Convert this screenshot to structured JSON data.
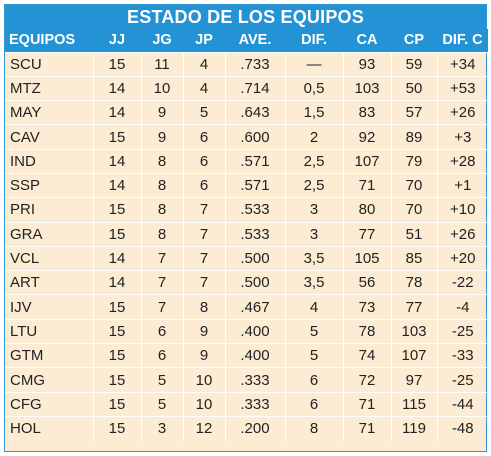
{
  "title": "ESTADO DE LOS EQUIPOS",
  "headers": [
    "EQUIPOS",
    "JJ",
    "JG",
    "JP",
    "AVE.",
    "DIF.",
    "CA",
    "CP",
    "DIF. C"
  ],
  "rows": [
    [
      "SCU",
      "15",
      "11",
      "4",
      ".733",
      "—",
      "93",
      "59",
      "+34"
    ],
    [
      "MTZ",
      "14",
      "10",
      "4",
      ".714",
      "0,5",
      "103",
      "50",
      "+53"
    ],
    [
      "MAY",
      "14",
      "9",
      "5",
      ".643",
      "1,5",
      "83",
      "57",
      "+26"
    ],
    [
      "CAV",
      "15",
      "9",
      "6",
      ".600",
      "2",
      "92",
      "89",
      "+3"
    ],
    [
      "IND",
      "14",
      "8",
      "6",
      ".571",
      "2,5",
      "107",
      "79",
      "+28"
    ],
    [
      "SSP",
      "14",
      "8",
      "6",
      ".571",
      "2,5",
      "71",
      "70",
      "+1"
    ],
    [
      "PRI",
      "15",
      "8",
      "7",
      ".533",
      "3",
      "80",
      "70",
      "+10"
    ],
    [
      "GRA",
      "15",
      "8",
      "7",
      ".533",
      "3",
      "77",
      "51",
      "+26"
    ],
    [
      "VCL",
      "14",
      "7",
      "7",
      ".500",
      "3,5",
      "105",
      "85",
      "+20"
    ],
    [
      "ART",
      "14",
      "7",
      "7",
      ".500",
      "3,5",
      "56",
      "78",
      "-22"
    ],
    [
      "IJV",
      "15",
      "7",
      "8",
      ".467",
      "4",
      "73",
      "77",
      "-4"
    ],
    [
      "LTU",
      "15",
      "6",
      "9",
      ".400",
      "5",
      "78",
      "103",
      "-25"
    ],
    [
      "GTM",
      "15",
      "6",
      "9",
      ".400",
      "5",
      "74",
      "107",
      "-33"
    ],
    [
      "CMG",
      "15",
      "5",
      "10",
      ".333",
      "6",
      "72",
      "97",
      "-25"
    ],
    [
      "CFG",
      "15",
      "5",
      "10",
      ".333",
      "6",
      "71",
      "115",
      "-44"
    ],
    [
      "HOL",
      "15",
      "3",
      "12",
      ".200",
      "8",
      "71",
      "119",
      "-48"
    ]
  ],
  "colors": {
    "header_bg": "#2393d6",
    "header_text": "#ffffff",
    "body_bg": "#fcecd3",
    "body_text": "#222222"
  }
}
